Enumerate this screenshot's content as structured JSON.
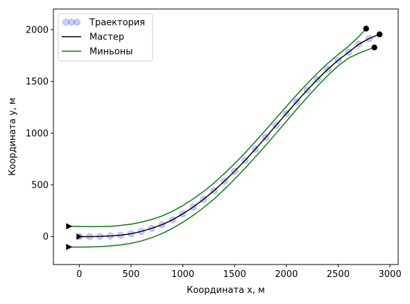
{
  "chart_data": {
    "type": "line",
    "title": "",
    "xlabel": "Координата x, м",
    "ylabel": "Координата y, м",
    "xlim": [
      -250,
      3080
    ],
    "ylim": [
      -270,
      2200
    ],
    "x_ticks": [
      0,
      500,
      1000,
      1500,
      2000,
      2500,
      3000
    ],
    "y_ticks": [
      0,
      500,
      1000,
      1500,
      2000
    ],
    "grid": false,
    "legend": {
      "placement": "top-left",
      "entries": [
        "Траектория",
        "Мастер",
        "Миньоны"
      ]
    },
    "colors": {
      "trajectory": "#0000ff",
      "master": "#000000",
      "minions": "#008000"
    },
    "series": [
      {
        "name": "Траектория",
        "kind": "scatter",
        "points": [
          [
            0,
            0
          ],
          [
            100,
            0
          ],
          [
            200,
            2
          ],
          [
            300,
            6
          ],
          [
            400,
            14
          ],
          [
            500,
            28
          ],
          [
            600,
            50
          ],
          [
            700,
            80
          ],
          [
            800,
            115
          ],
          [
            900,
            162
          ],
          [
            1000,
            220
          ],
          [
            1100,
            286
          ],
          [
            1200,
            360
          ],
          [
            1300,
            443
          ],
          [
            1400,
            535
          ],
          [
            1500,
            632
          ],
          [
            1600,
            735
          ],
          [
            1700,
            845
          ],
          [
            1800,
            958
          ],
          [
            1900,
            1075
          ],
          [
            2000,
            1190
          ],
          [
            2100,
            1305
          ],
          [
            2200,
            1415
          ],
          [
            2300,
            1520
          ],
          [
            2400,
            1618
          ],
          [
            2500,
            1705
          ],
          [
            2600,
            1782
          ],
          [
            2700,
            1860
          ],
          [
            2800,
            1915
          ]
        ]
      },
      {
        "name": "Мастер",
        "kind": "line",
        "points": [
          [
            0,
            0
          ],
          [
            100,
            0
          ],
          [
            200,
            2
          ],
          [
            300,
            6
          ],
          [
            400,
            14
          ],
          [
            500,
            28
          ],
          [
            600,
            50
          ],
          [
            700,
            80
          ],
          [
            800,
            115
          ],
          [
            900,
            162
          ],
          [
            1000,
            220
          ],
          [
            1100,
            286
          ],
          [
            1200,
            360
          ],
          [
            1300,
            443
          ],
          [
            1400,
            535
          ],
          [
            1500,
            632
          ],
          [
            1600,
            735
          ],
          [
            1700,
            845
          ],
          [
            1800,
            958
          ],
          [
            1900,
            1075
          ],
          [
            2000,
            1190
          ],
          [
            2100,
            1305
          ],
          [
            2200,
            1415
          ],
          [
            2300,
            1520
          ],
          [
            2400,
            1618
          ],
          [
            2500,
            1705
          ],
          [
            2600,
            1782
          ],
          [
            2700,
            1860
          ],
          [
            2800,
            1915
          ],
          [
            2900,
            1955
          ]
        ],
        "start": [
          0,
          0
        ],
        "end": [
          2900,
          1955
        ]
      },
      {
        "name": "Миньоны",
        "kind": "line",
        "points": [
          [
            -100,
            100
          ],
          [
            0,
            98
          ],
          [
            100,
            96
          ],
          [
            200,
            97
          ],
          [
            300,
            100
          ],
          [
            400,
            108
          ],
          [
            500,
            120
          ],
          [
            600,
            140
          ],
          [
            700,
            166
          ],
          [
            800,
            200
          ],
          [
            900,
            245
          ],
          [
            1000,
            300
          ],
          [
            1100,
            364
          ],
          [
            1200,
            436
          ],
          [
            1300,
            518
          ],
          [
            1400,
            608
          ],
          [
            1500,
            705
          ],
          [
            1600,
            808
          ],
          [
            1700,
            918
          ],
          [
            1800,
            1030
          ],
          [
            1900,
            1145
          ],
          [
            2000,
            1258
          ],
          [
            2100,
            1370
          ],
          [
            2200,
            1478
          ],
          [
            2300,
            1580
          ],
          [
            2400,
            1675
          ],
          [
            2500,
            1760
          ],
          [
            2600,
            1840
          ],
          [
            2700,
            1935
          ],
          [
            2770,
            2010
          ]
        ],
        "start": [
          -100,
          100
        ],
        "end": [
          2770,
          2010
        ]
      },
      {
        "name": "",
        "kind": "line",
        "points": [
          [
            -100,
            -100
          ],
          [
            0,
            -102
          ],
          [
            100,
            -100
          ],
          [
            200,
            -97
          ],
          [
            300,
            -90
          ],
          [
            400,
            -80
          ],
          [
            500,
            -65
          ],
          [
            600,
            -42
          ],
          [
            700,
            -10
          ],
          [
            800,
            30
          ],
          [
            900,
            80
          ],
          [
            1000,
            138
          ],
          [
            1100,
            205
          ],
          [
            1200,
            280
          ],
          [
            1300,
            362
          ],
          [
            1400,
            455
          ],
          [
            1500,
            555
          ],
          [
            1600,
            660
          ],
          [
            1700,
            770
          ],
          [
            1800,
            882
          ],
          [
            1900,
            998
          ],
          [
            2000,
            1115
          ],
          [
            2100,
            1232
          ],
          [
            2200,
            1345
          ],
          [
            2300,
            1455
          ],
          [
            2400,
            1558
          ],
          [
            2500,
            1650
          ],
          [
            2600,
            1725
          ],
          [
            2700,
            1772
          ],
          [
            2790,
            1808
          ],
          [
            2850,
            1828
          ]
        ],
        "start": [
          -100,
          -100
        ],
        "end": [
          2850,
          1828
        ]
      }
    ]
  }
}
